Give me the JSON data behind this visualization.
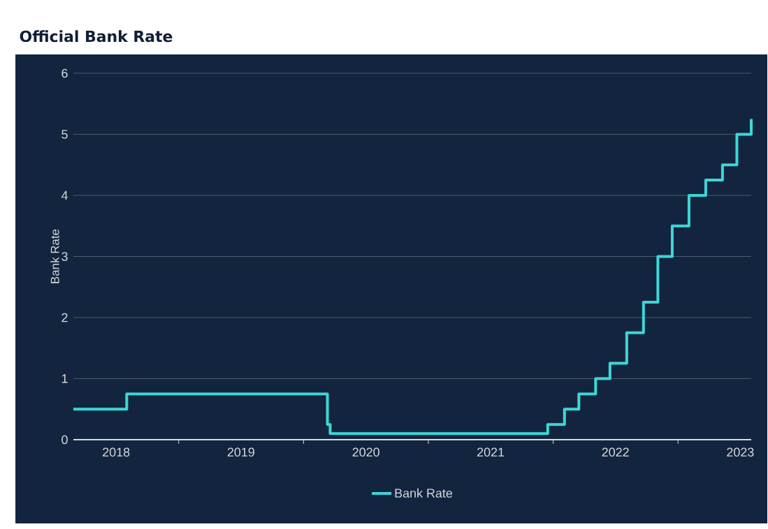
{
  "chart_data": {
    "type": "step",
    "title": "Official Bank Rate",
    "ylabel": "Bank Rate",
    "x": [
      "2018-02-27",
      "2018-08-02",
      "2020-03-11",
      "2020-03-19",
      "2021-12-16",
      "2022-02-03",
      "2022-03-17",
      "2022-05-05",
      "2022-06-16",
      "2022-08-04",
      "2022-09-22",
      "2022-11-03",
      "2022-12-15",
      "2023-02-02",
      "2023-03-23",
      "2023-05-11",
      "2023-06-22",
      "2023-08-03"
    ],
    "series": [
      {
        "name": "Bank Rate",
        "color": "#3dd6d8",
        "values": [
          0.5,
          0.75,
          0.25,
          0.1,
          0.25,
          0.5,
          0.75,
          1,
          1.25,
          1.75,
          2.25,
          3,
          3.5,
          4,
          4.25,
          4.5,
          5,
          5.25
        ]
      }
    ],
    "xlim": [
      "2018-02-27",
      "2023-08-03"
    ],
    "xticks": [
      {
        "value": "2018-07-02",
        "label": "2018"
      },
      {
        "value": "2019-01-01",
        "label": null
      },
      {
        "value": "2019-07-02",
        "label": "2019"
      },
      {
        "value": "2020-01-01",
        "label": null
      },
      {
        "value": "2020-07-02",
        "label": "2020"
      },
      {
        "value": "2021-01-01",
        "label": null
      },
      {
        "value": "2021-07-02",
        "label": "2021"
      },
      {
        "value": "2022-01-01",
        "label": null
      },
      {
        "value": "2022-07-02",
        "label": "2022"
      },
      {
        "value": "2023-01-01",
        "label": null
      },
      {
        "value": "2023-07-02",
        "label": "2023"
      }
    ],
    "ylim": [
      0,
      6
    ],
    "yticks": [
      0,
      1,
      2,
      3,
      4,
      5,
      6
    ],
    "grid": "y",
    "legend": "bottom",
    "marker": "none",
    "line_style": "solid"
  }
}
